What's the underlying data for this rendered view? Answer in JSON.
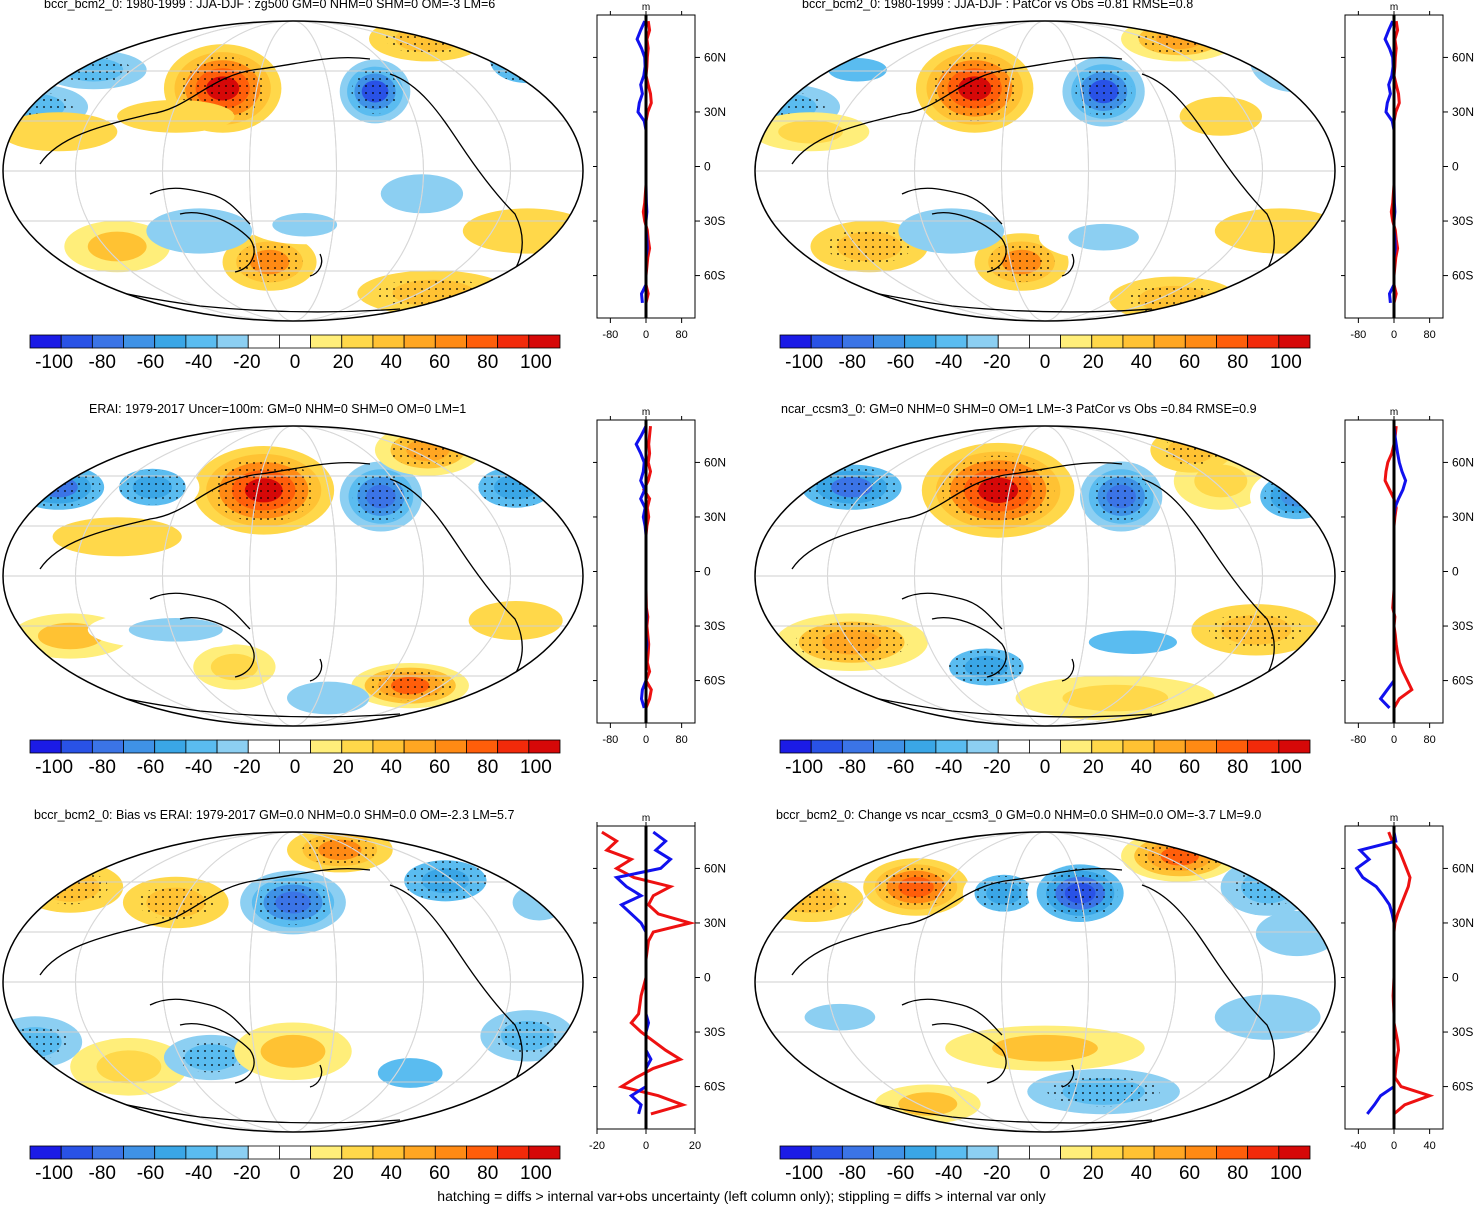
{
  "chart_data": [
    {
      "type": "heatmap",
      "title": "bccr_bcm2_0: 1980-1999 : JJA-DJF : zg500 GM=0 NHM=0 SHM=0 OM=-3 LM=6",
      "colorbar": {
        "ticks": [
          "-100",
          "-80",
          "-60",
          "-40",
          "-20",
          "0",
          "20",
          "40",
          "60",
          "80",
          "100"
        ],
        "range": [
          -110,
          110
        ]
      },
      "zonal_profile": {
        "xlabel": "m",
        "xticks": [
          "-80",
          "0",
          "80"
        ],
        "xlim": [
          -110,
          110
        ],
        "yticks": [
          "60N",
          "30N",
          "0",
          "30S",
          "60S"
        ],
        "lat": [
          80,
          75,
          70,
          65,
          60,
          55,
          50,
          45,
          40,
          35,
          30,
          25,
          20,
          10,
          0,
          -10,
          -20,
          -25,
          -30,
          -35,
          -40,
          -45,
          -50,
          -55,
          -60,
          -65,
          -70,
          -75
        ],
        "model": [
          5,
          8,
          2,
          5,
          3,
          2,
          0,
          5,
          10,
          12,
          4,
          0,
          0,
          0,
          0,
          0,
          -3,
          -6,
          -3,
          3,
          5,
          8,
          4,
          2,
          0,
          0,
          5,
          0
        ],
        "reference": [
          -3,
          -12,
          -20,
          -10,
          -3,
          -2,
          -5,
          -12,
          -8,
          -15,
          -18,
          -4,
          0,
          0,
          0,
          0,
          1,
          2,
          0,
          0,
          2,
          3,
          0,
          0,
          0,
          0,
          -10,
          -8
        ]
      }
    },
    {
      "type": "heatmap",
      "title": "bccr_bcm2_0: 1980-1999 : JJA-DJF : PatCor vs Obs =0.81 RMSE=0.8",
      "colorbar": {
        "ticks": [
          "-100",
          "-80",
          "-60",
          "-40",
          "-20",
          "0",
          "20",
          "40",
          "60",
          "80",
          "100"
        ],
        "range": [
          -110,
          110
        ]
      },
      "zonal_profile": {
        "xlabel": "m",
        "xticks": [
          "-80",
          "0",
          "80"
        ],
        "xlim": [
          -110,
          110
        ],
        "yticks": [
          "60N",
          "30N",
          "0",
          "30S",
          "60S"
        ],
        "lat": [
          80,
          75,
          70,
          65,
          60,
          55,
          50,
          45,
          40,
          35,
          30,
          25,
          20,
          10,
          0,
          -10,
          -20,
          -25,
          -30,
          -35,
          -40,
          -45,
          -50,
          -55,
          -60,
          -65,
          -70,
          -75
        ],
        "model": [
          5,
          8,
          2,
          5,
          3,
          2,
          0,
          5,
          10,
          12,
          4,
          0,
          0,
          0,
          0,
          0,
          -3,
          -6,
          -3,
          3,
          5,
          8,
          4,
          2,
          0,
          0,
          5,
          0
        ],
        "reference": [
          -3,
          -12,
          -20,
          -10,
          -3,
          -2,
          -5,
          -12,
          -8,
          -15,
          -18,
          -4,
          0,
          0,
          0,
          0,
          1,
          2,
          0,
          0,
          2,
          3,
          0,
          0,
          0,
          0,
          -10,
          -8
        ]
      }
    },
    {
      "type": "heatmap",
      "title": "ERAI: 1979-2017 Uncer=100m: GM=0 NHM=0 SHM=0 OM=0 LM=1",
      "colorbar": {
        "ticks": [
          "-100",
          "-80",
          "-60",
          "-40",
          "-20",
          "0",
          "20",
          "40",
          "60",
          "80",
          "100"
        ],
        "range": [
          -110,
          110
        ]
      },
      "zonal_profile": {
        "xlabel": "m",
        "xticks": [
          "-80",
          "0",
          "80"
        ],
        "xlim": [
          -110,
          110
        ],
        "yticks": [
          "60N",
          "30N",
          "0",
          "30S",
          "60S"
        ],
        "lat": [
          80,
          75,
          70,
          65,
          60,
          55,
          50,
          45,
          40,
          35,
          30,
          25,
          20,
          10,
          0,
          -10,
          -20,
          -25,
          -30,
          -35,
          -40,
          -45,
          -50,
          -55,
          -60,
          -65,
          -70,
          -75
        ],
        "model": [
          10,
          8,
          6,
          8,
          5,
          10,
          5,
          -5,
          8,
          3,
          6,
          2,
          0,
          0,
          0,
          0,
          1,
          4,
          2,
          4,
          6,
          5,
          3,
          8,
          0,
          12,
          8,
          0
        ],
        "reference": [
          0,
          -10,
          -22,
          -12,
          -4,
          -6,
          -12,
          -3,
          -12,
          -2,
          -6,
          -2,
          0,
          0,
          0,
          0,
          0,
          1,
          0,
          0,
          2,
          0,
          0,
          0,
          0,
          -8,
          -10,
          -4
        ]
      }
    },
    {
      "type": "heatmap",
      "title": "ncar_ccsm3_0: GM=0 NHM=0 SHM=0 OM=1 LM=-3 PatCor vs Obs =0.84 RMSE=0.9",
      "colorbar": {
        "ticks": [
          "-100",
          "-80",
          "-60",
          "-40",
          "-20",
          "0",
          "20",
          "40",
          "60",
          "80",
          "100"
        ],
        "range": [
          -110,
          110
        ]
      },
      "zonal_profile": {
        "xlabel": "m",
        "xticks": [
          "-80",
          "0",
          "80"
        ],
        "xlim": [
          -110,
          110
        ],
        "yticks": [
          "60N",
          "30N",
          "0",
          "30S",
          "60S"
        ],
        "lat": [
          80,
          75,
          70,
          65,
          60,
          55,
          50,
          45,
          40,
          35,
          30,
          25,
          20,
          10,
          0,
          -10,
          -20,
          -25,
          -30,
          -35,
          -40,
          -45,
          -50,
          -55,
          -60,
          -65,
          -70,
          -75
        ],
        "model": [
          5,
          3,
          0,
          -5,
          -14,
          -18,
          -20,
          -10,
          0,
          5,
          2,
          0,
          0,
          0,
          0,
          0,
          -3,
          2,
          0,
          3,
          5,
          8,
          12,
          20,
          30,
          40,
          12,
          0
        ],
        "reference": [
          0,
          2,
          5,
          8,
          12,
          18,
          26,
          20,
          10,
          2,
          0,
          0,
          0,
          0,
          0,
          0,
          0,
          0,
          0,
          0,
          0,
          0,
          0,
          0,
          0,
          -15,
          -30,
          -10
        ]
      }
    },
    {
      "type": "heatmap",
      "title": "bccr_bcm2_0: Bias vs ERAI: 1979-2017 GM=0.0 NHM=0.0 SHM=0.0 OM=-2.3 LM=5.7",
      "colorbar": {
        "ticks": [
          "-100",
          "-80",
          "-60",
          "-40",
          "-20",
          "0",
          "20",
          "40",
          "60",
          "80",
          "100"
        ],
        "range": [
          -110,
          110
        ]
      },
      "zonal_profile": {
        "xlabel": "m",
        "xticks": [
          "-20",
          "0",
          "20"
        ],
        "xlim": [
          -20,
          20
        ],
        "yticks": [
          "60N",
          "30N",
          "0",
          "30S",
          "60S"
        ],
        "lat": [
          80,
          75,
          70,
          65,
          60,
          55,
          50,
          45,
          40,
          35,
          30,
          25,
          20,
          10,
          0,
          -10,
          -20,
          -25,
          -30,
          -35,
          -40,
          -45,
          -50,
          -55,
          -60,
          -65,
          -70,
          -75
        ],
        "model": [
          -18,
          -12,
          -16,
          -6,
          -12,
          -5,
          10,
          3,
          1,
          5,
          18,
          3,
          1,
          0,
          0,
          -2,
          -3,
          -6,
          -2,
          3,
          8,
          14,
          3,
          -4,
          -10,
          5,
          15,
          2
        ],
        "reference": [
          3,
          8,
          4,
          10,
          6,
          -12,
          -8,
          -2,
          -10,
          -6,
          -2,
          0,
          0,
          0,
          0,
          0,
          0,
          1,
          0,
          0,
          0,
          2,
          0,
          0,
          0,
          -6,
          -2,
          -3
        ]
      }
    },
    {
      "type": "heatmap",
      "title": "bccr_bcm2_0: Change vs ncar_ccsm3_0 GM=0.0 NHM=0.0 SHM=0.0 OM=-3.7 LM=9.0",
      "colorbar": {
        "ticks": [
          "-100",
          "-80",
          "-60",
          "-40",
          "-20",
          "0",
          "20",
          "40",
          "60",
          "80",
          "100"
        ],
        "range": [
          -110,
          110
        ]
      },
      "zonal_profile": {
        "xlabel": "m",
        "xticks": [
          "-40",
          "0",
          "40"
        ],
        "xlim": [
          -55,
          55
        ],
        "yticks": [
          "60N",
          "30N",
          "0",
          "30S",
          "60S"
        ],
        "lat": [
          80,
          75,
          70,
          65,
          60,
          55,
          50,
          45,
          40,
          35,
          30,
          25,
          20,
          10,
          0,
          -10,
          -20,
          -25,
          -30,
          -35,
          -40,
          -45,
          -50,
          -55,
          -60,
          -65,
          -70,
          -75
        ],
        "model": [
          -6,
          -2,
          6,
          10,
          14,
          18,
          16,
          12,
          8,
          4,
          1,
          0,
          0,
          0,
          0,
          -1,
          0,
          0,
          2,
          4,
          5,
          3,
          2,
          1,
          8,
          40,
          12,
          0
        ],
        "reference": [
          0,
          2,
          -38,
          -28,
          -42,
          -35,
          -20,
          -12,
          -5,
          -2,
          0,
          0,
          0,
          0,
          0,
          0,
          0,
          0,
          0,
          0,
          0,
          0,
          0,
          0,
          0,
          -15,
          -22,
          -30
        ]
      }
    }
  ],
  "footer": "hatching = diffs > internal var+obs uncertainty (left column only); stippling = diffs > internal var only",
  "colors": {
    "palette": [
      "#1b1be6",
      "#2952e6",
      "#3b74e6",
      "#3f92e6",
      "#3aa6e6",
      "#5abcf0",
      "#8ccff2",
      "#ffffff",
      "#ffffff",
      "#ffee7a",
      "#ffd84a",
      "#ffc233",
      "#ffa622",
      "#ff8a14",
      "#ff5e0a",
      "#f22a0a",
      "#d60808"
    ],
    "profile_model": "#ee1111",
    "profile_reference": "#1111ee",
    "stipple": "#000000"
  }
}
